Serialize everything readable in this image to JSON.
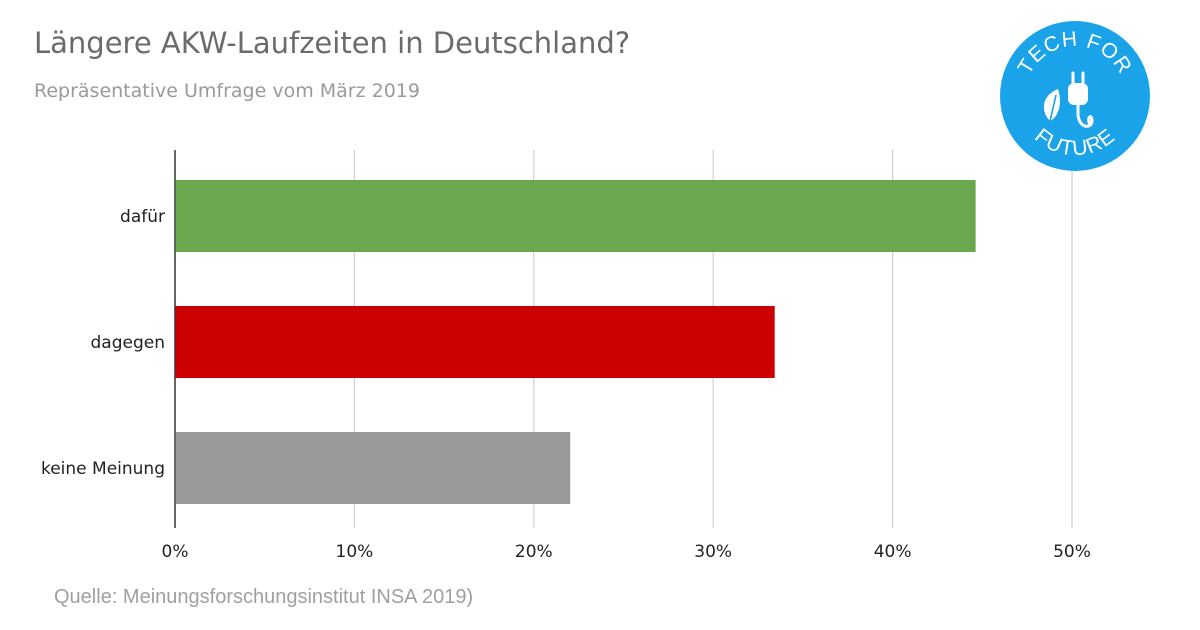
{
  "title": "Längere AKW-Laufzeiten in Deutschland?",
  "subtitle": "Repräsentative Umfrage vom März 2019",
  "source": "Quelle: Meinungsforschungsinstitut INSA 2019)",
  "logo": {
    "text_top": "TECH FOR",
    "text_bottom": "FUTURE",
    "color": "#1aa3e8",
    "icons": [
      "leaf-icon",
      "plug-icon"
    ]
  },
  "chart_data": {
    "type": "bar",
    "orientation": "horizontal",
    "categories": [
      "dafür",
      "dagegen",
      "keine Meinung"
    ],
    "values": [
      0.446,
      0.334,
      0.22
    ],
    "colors": [
      "#6aa84f",
      "#cc0000",
      "#999999"
    ],
    "xlim": [
      0,
      0.5
    ],
    "xticks": [
      0,
      0.1,
      0.2,
      0.3,
      0.4,
      0.5
    ],
    "xtick_labels": [
      "0%",
      "10%",
      "20%",
      "30%",
      "40%",
      "50%"
    ],
    "grid": "vertical",
    "legend": "none"
  }
}
